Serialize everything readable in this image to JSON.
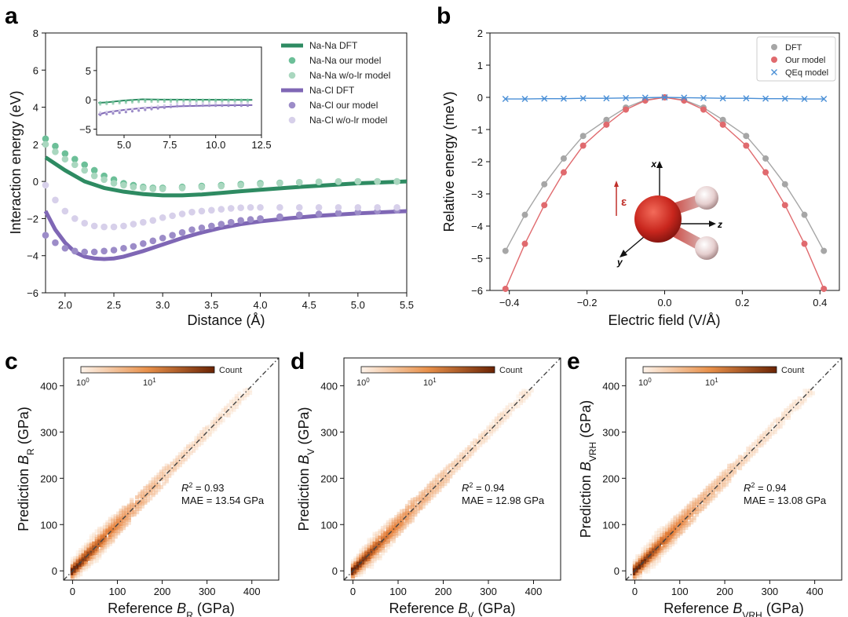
{
  "panels": {
    "a": {
      "letter": "a"
    },
    "b": {
      "letter": "b"
    },
    "c": {
      "letter": "c"
    },
    "d": {
      "letter": "d"
    },
    "e": {
      "letter": "e"
    }
  },
  "colors": {
    "nana": "#2e8b62",
    "nana_light": "#a9d7bf",
    "nana_mid": "#6cbf98",
    "nacl": "#7f67b5",
    "nacl_light": "#d7d0ea",
    "nacl_mid": "#9c8cc8",
    "dft_gray": "#a6a6a6",
    "our_red": "#e06a6e",
    "qeq_blue": "#4a8fd6",
    "hex_dark": "#7a2e05",
    "hex_light": "#fbe9d9"
  },
  "chart_data": [
    {
      "id": "a",
      "type": "scatter",
      "xlabel": "Distance (Å)",
      "ylabel": "Interaction energy (eV)",
      "xlim": [
        1.8,
        5.5
      ],
      "ylim": [
        -6,
        8
      ],
      "xticks": [
        "2.0",
        "2.5",
        "3.0",
        "3.5",
        "4.0",
        "4.5",
        "5.0",
        "5.5"
      ],
      "yticks": [
        "−6",
        "−4",
        "−2",
        "0",
        "2",
        "4",
        "6",
        "8"
      ],
      "legend_position": "top-right",
      "legend": [
        "Na-Na DFT",
        "Na-Na our model",
        "Na-Na w/o-lr model",
        "Na-Cl DFT",
        "Na-Cl our model",
        "Na-Cl w/o-lr model"
      ],
      "series": [
        {
          "name": "Na-Na DFT",
          "style": "line",
          "x": [
            1.8,
            2.0,
            2.2,
            2.4,
            2.6,
            2.8,
            3.0,
            3.2,
            3.4,
            3.6,
            3.8,
            4.0,
            4.3,
            4.6,
            5.0,
            5.5
          ],
          "y": [
            1.3,
            0.6,
            0.0,
            -0.35,
            -0.55,
            -0.68,
            -0.75,
            -0.75,
            -0.7,
            -0.62,
            -0.53,
            -0.45,
            -0.33,
            -0.23,
            -0.1,
            0.0
          ]
        },
        {
          "name": "Na-Na our model",
          "style": "dots",
          "x": [
            1.8,
            1.9,
            2.0,
            2.1,
            2.2,
            2.3,
            2.4,
            2.5,
            2.6,
            2.7,
            2.8,
            2.9,
            3.0,
            3.2,
            3.4,
            3.6,
            3.8,
            4.0,
            4.2,
            4.4,
            4.6,
            4.8,
            5.0,
            5.2,
            5.4
          ],
          "y": [
            2.3,
            1.9,
            1.5,
            1.2,
            0.9,
            0.6,
            0.3,
            0.1,
            -0.1,
            -0.2,
            -0.3,
            -0.35,
            -0.35,
            -0.3,
            -0.25,
            -0.2,
            -0.15,
            -0.1,
            -0.08,
            -0.05,
            -0.03,
            -0.02,
            0.0,
            0.0,
            0.0
          ]
        },
        {
          "name": "Na-Na w/o-lr model",
          "style": "dots",
          "x": [
            1.8,
            1.9,
            2.0,
            2.1,
            2.2,
            2.3,
            2.4,
            2.5,
            2.6,
            2.7,
            2.8,
            2.9,
            3.0,
            3.2,
            3.4,
            3.6,
            3.8,
            4.0,
            4.2,
            4.4,
            4.6,
            4.8,
            5.0,
            5.2,
            5.4
          ],
          "y": [
            2.0,
            1.6,
            1.2,
            0.9,
            0.6,
            0.3,
            0.1,
            -0.1,
            -0.2,
            -0.3,
            -0.35,
            -0.4,
            -0.4,
            -0.35,
            -0.3,
            -0.25,
            -0.2,
            -0.15,
            -0.1,
            -0.05,
            -0.02,
            0.0,
            0.0,
            0.0,
            0.0
          ]
        },
        {
          "name": "Na-Cl DFT",
          "style": "line",
          "x": [
            1.8,
            1.9,
            2.0,
            2.1,
            2.2,
            2.3,
            2.4,
            2.5,
            2.6,
            2.8,
            3.0,
            3.2,
            3.4,
            3.6,
            3.8,
            4.0,
            4.3,
            4.6,
            5.0,
            5.5
          ],
          "y": [
            -1.6,
            -2.6,
            -3.3,
            -3.8,
            -4.05,
            -4.15,
            -4.18,
            -4.15,
            -4.05,
            -3.75,
            -3.4,
            -3.05,
            -2.75,
            -2.5,
            -2.3,
            -2.15,
            -1.98,
            -1.85,
            -1.72,
            -1.6
          ]
        },
        {
          "name": "Na-Cl our model",
          "style": "dots",
          "x": [
            1.8,
            1.9,
            2.0,
            2.1,
            2.2,
            2.3,
            2.4,
            2.5,
            2.6,
            2.7,
            2.8,
            2.9,
            3.0,
            3.1,
            3.2,
            3.3,
            3.4,
            3.5,
            3.6,
            3.7,
            3.8,
            3.9,
            4.0,
            4.2,
            4.4,
            4.6,
            4.8,
            5.0,
            5.2,
            5.4
          ],
          "y": [
            -2.9,
            -3.3,
            -3.6,
            -3.75,
            -3.8,
            -3.8,
            -3.75,
            -3.7,
            -3.6,
            -3.5,
            -3.35,
            -3.2,
            -3.05,
            -2.9,
            -2.75,
            -2.6,
            -2.5,
            -2.4,
            -2.3,
            -2.2,
            -2.1,
            -2.05,
            -2.0,
            -1.9,
            -1.8,
            -1.75,
            -1.7,
            -1.65,
            -1.6,
            -1.55
          ]
        },
        {
          "name": "Na-Cl w/o-lr model",
          "style": "dots",
          "x": [
            1.8,
            1.9,
            2.0,
            2.1,
            2.2,
            2.3,
            2.4,
            2.5,
            2.6,
            2.7,
            2.8,
            2.9,
            3.0,
            3.1,
            3.2,
            3.3,
            3.4,
            3.5,
            3.6,
            3.7,
            3.8,
            3.9,
            4.0,
            4.2,
            4.4,
            4.6,
            4.8,
            5.0,
            5.2,
            5.4
          ],
          "y": [
            -0.2,
            -1.0,
            -1.6,
            -2.0,
            -2.25,
            -2.4,
            -2.45,
            -2.45,
            -2.4,
            -2.3,
            -2.2,
            -2.1,
            -1.95,
            -1.85,
            -1.75,
            -1.65,
            -1.6,
            -1.55,
            -1.5,
            -1.45,
            -1.42,
            -1.4,
            -1.4,
            -1.4,
            -1.4,
            -1.4,
            -1.4,
            -1.4,
            -1.4,
            -1.4
          ]
        }
      ],
      "inset": {
        "xlim": [
          3.5,
          12.5
        ],
        "ylim": [
          -6,
          9
        ],
        "xticks": [
          "5.0",
          "7.5",
          "10.0",
          "12.5"
        ],
        "yticks": [
          "−5",
          "0",
          "5"
        ]
      }
    },
    {
      "id": "b",
      "type": "line",
      "xlabel": "Electric field (V/Å)",
      "ylabel": "Relative energy (meV)",
      "xlim": [
        -0.45,
        0.45
      ],
      "ylim": [
        -6,
        2
      ],
      "xticks": [
        "−0.4",
        "−0.2",
        "0.0",
        "0.2",
        "0.4"
      ],
      "yticks": [
        "−6",
        "−5",
        "−4",
        "−3",
        "−2",
        "−1",
        "0",
        "1",
        "2"
      ],
      "legend_position": "top-right",
      "legend": [
        "DFT",
        "Our model",
        "QEq model"
      ],
      "x": [
        -0.41,
        -0.36,
        -0.31,
        -0.26,
        -0.21,
        -0.15,
        -0.1,
        -0.05,
        0.0,
        0.05,
        0.1,
        0.15,
        0.21,
        0.26,
        0.31,
        0.36,
        0.41
      ],
      "series": [
        {
          "name": "DFT",
          "y": [
            -4.77,
            -3.65,
            -2.7,
            -1.9,
            -1.2,
            -0.7,
            -0.32,
            -0.08,
            0.0,
            -0.08,
            -0.32,
            -0.7,
            -1.2,
            -1.9,
            -2.7,
            -3.65,
            -4.77
          ]
        },
        {
          "name": "Our model",
          "y": [
            -5.95,
            -4.55,
            -3.35,
            -2.33,
            -1.5,
            -0.85,
            -0.38,
            -0.1,
            0.0,
            -0.1,
            -0.38,
            -0.85,
            -1.5,
            -2.33,
            -3.35,
            -4.55,
            -5.95
          ]
        },
        {
          "name": "QEq model",
          "y": [
            -0.05,
            -0.05,
            -0.04,
            -0.04,
            -0.03,
            -0.03,
            -0.02,
            -0.01,
            0.0,
            -0.01,
            -0.02,
            -0.03,
            -0.03,
            -0.04,
            -0.04,
            -0.05,
            -0.05
          ]
        }
      ],
      "molecule_labels": {
        "x": "x",
        "y": "y",
        "z": "z",
        "field": "ε"
      }
    },
    {
      "id": "c",
      "type": "heatmap",
      "xlabel_prefix": "Reference ",
      "xlabel_var": "B",
      "xlabel_sub": "R",
      "xlabel_suffix": " (GPa)",
      "ylabel_prefix": "Prediction ",
      "ylabel_var": "B",
      "ylabel_sub": "R",
      "ylabel_suffix": " (GPa)",
      "xlim": [
        -20,
        460
      ],
      "ylim": [
        -20,
        460
      ],
      "xticks": [
        "0",
        "100",
        "200",
        "300",
        "400"
      ],
      "yticks": [
        "0",
        "100",
        "200",
        "300",
        "400"
      ],
      "r2": "0.93",
      "mae": "MAE = 13.54 GPa",
      "colorbar_label": "Count",
      "colorbar_ticks": [
        "10",
        "10"
      ],
      "colorbar_exp": [
        "0",
        "1"
      ]
    },
    {
      "id": "d",
      "type": "heatmap",
      "xlabel_prefix": "Reference ",
      "xlabel_var": "B",
      "xlabel_sub": "V",
      "xlabel_suffix": " (GPa)",
      "ylabel_prefix": "Prediction ",
      "ylabel_var": "B",
      "ylabel_sub": "V",
      "ylabel_suffix": " (GPa)",
      "xlim": [
        -20,
        460
      ],
      "ylim": [
        -20,
        460
      ],
      "xticks": [
        "0",
        "100",
        "200",
        "300",
        "400"
      ],
      "yticks": [
        "0",
        "100",
        "200",
        "300",
        "400"
      ],
      "r2": "0.94",
      "mae": "MAE = 12.98 GPa",
      "colorbar_label": "Count",
      "colorbar_ticks": [
        "10",
        "10"
      ],
      "colorbar_exp": [
        "0",
        "1"
      ]
    },
    {
      "id": "e",
      "type": "heatmap",
      "xlabel_prefix": "Reference ",
      "xlabel_var": "B",
      "xlabel_sub": "VRH",
      "xlabel_suffix": " (GPa)",
      "ylabel_prefix": "Prediction ",
      "ylabel_var": "B",
      "ylabel_sub": "VRH",
      "ylabel_suffix": " (GPa)",
      "xlim": [
        -20,
        460
      ],
      "ylim": [
        -20,
        460
      ],
      "xticks": [
        "0",
        "100",
        "200",
        "300",
        "400"
      ],
      "yticks": [
        "0",
        "100",
        "200",
        "300",
        "400"
      ],
      "r2": "0.94",
      "mae": "MAE = 13.08 GPa",
      "colorbar_label": "Count",
      "colorbar_ticks": [
        "10",
        "10"
      ],
      "colorbar_exp": [
        "0",
        "1"
      ]
    }
  ]
}
